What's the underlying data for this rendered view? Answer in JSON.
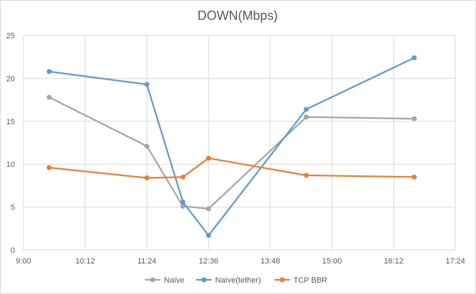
{
  "chart_data": {
    "type": "scatter",
    "title": "DOWN(Mbps)",
    "xlabel": "",
    "ylabel": "",
    "x_axis": {
      "range_minutes": [
        540,
        1044
      ],
      "ticks": [
        "9:00",
        "10:12",
        "11:24",
        "12:36",
        "13:48",
        "15:00",
        "16:12",
        "17:24"
      ]
    },
    "y_axis": {
      "range": [
        0,
        25
      ],
      "ticks": [
        "0",
        "5",
        "10",
        "15",
        "20",
        "25"
      ]
    },
    "grid": true,
    "legend_position": "bottom",
    "series": [
      {
        "name": "Naïve",
        "color": "#a5a5a5",
        "x": [
          "9:30",
          "11:24",
          "12:06",
          "12:36",
          "14:30",
          "16:36"
        ],
        "y": [
          17.8,
          12.1,
          5.1,
          4.8,
          15.5,
          15.3
        ]
      },
      {
        "name": "Naïve(tether)",
        "color": "#5b9bd5",
        "x": [
          "9:30",
          "11:24",
          "12:06",
          "12:36",
          "14:30",
          "16:36"
        ],
        "y": [
          20.8,
          19.3,
          5.6,
          1.7,
          16.4,
          22.4
        ]
      },
      {
        "name": "TCP BBR",
        "color": "#ed7d31",
        "x": [
          "9:30",
          "11:24",
          "12:06",
          "12:36",
          "14:30",
          "16:36"
        ],
        "y": [
          9.6,
          8.4,
          8.5,
          10.7,
          8.7,
          8.5
        ]
      }
    ]
  }
}
